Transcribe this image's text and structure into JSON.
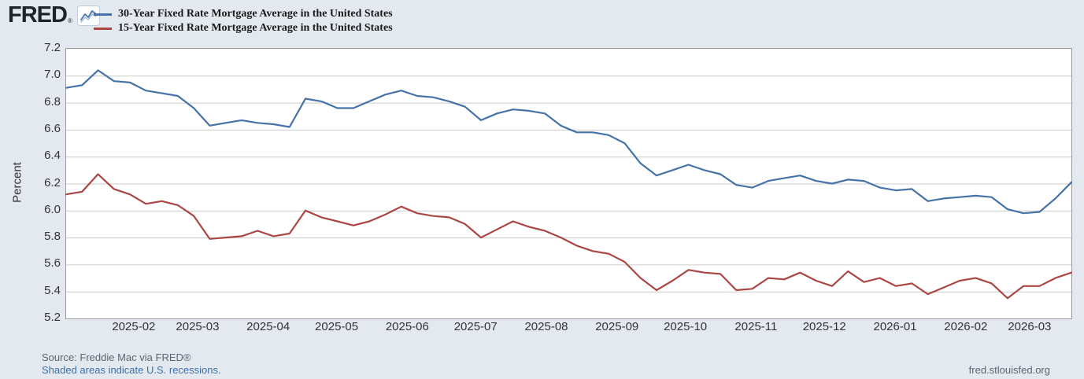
{
  "logo": {
    "text": "FRED",
    "registered": "®",
    "icon": "fred-sparkline-icon"
  },
  "legend": [
    {
      "label": "30-Year Fixed Rate Mortgage Average in the United States",
      "color": "#4572a7"
    },
    {
      "label": "15-Year Fixed Rate Mortgage Average in the United States",
      "color": "#aa4643"
    }
  ],
  "footer": {
    "source": "Source: Freddie Mac via FRED®",
    "recessions_link": "Shaded areas indicate U.S. recessions.",
    "site": "fred.stlouisfed.org"
  },
  "chart_data": {
    "type": "line",
    "ylabel": "Percent",
    "ylim": [
      5.2,
      7.2
    ],
    "yticks": [
      5.2,
      5.4,
      5.6,
      5.8,
      6.0,
      6.2,
      6.4,
      6.6,
      6.8,
      7.0,
      7.2
    ],
    "grid": true,
    "legend_position": "top-left",
    "x_domain": [
      "2025-01-02",
      "2026-03-19"
    ],
    "xticks": [
      {
        "label": "2025-02",
        "date": "2025-02-01"
      },
      {
        "label": "2025-03",
        "date": "2025-03-01"
      },
      {
        "label": "2025-04",
        "date": "2025-04-01"
      },
      {
        "label": "2025-05",
        "date": "2025-05-01"
      },
      {
        "label": "2025-06",
        "date": "2025-06-01"
      },
      {
        "label": "2025-07",
        "date": "2025-07-01"
      },
      {
        "label": "2025-08",
        "date": "2025-08-01"
      },
      {
        "label": "2025-09",
        "date": "2025-09-01"
      },
      {
        "label": "2025-10",
        "date": "2025-10-01"
      },
      {
        "label": "2025-11",
        "date": "2025-11-01"
      },
      {
        "label": "2025-12",
        "date": "2025-12-01"
      },
      {
        "label": "2026-01",
        "date": "2026-01-01"
      },
      {
        "label": "2026-02",
        "date": "2026-02-01"
      },
      {
        "label": "2026-03",
        "date": "2026-03-01"
      }
    ],
    "dates": [
      "2025-01-02",
      "2025-01-09",
      "2025-01-16",
      "2025-01-23",
      "2025-01-30",
      "2025-02-06",
      "2025-02-13",
      "2025-02-20",
      "2025-02-27",
      "2025-03-06",
      "2025-03-13",
      "2025-03-20",
      "2025-03-27",
      "2025-04-03",
      "2025-04-10",
      "2025-04-17",
      "2025-04-24",
      "2025-05-01",
      "2025-05-08",
      "2025-05-15",
      "2025-05-22",
      "2025-05-29",
      "2025-06-05",
      "2025-06-12",
      "2025-06-19",
      "2025-06-26",
      "2025-07-03",
      "2025-07-10",
      "2025-07-17",
      "2025-07-24",
      "2025-07-31",
      "2025-08-07",
      "2025-08-14",
      "2025-08-21",
      "2025-08-28",
      "2025-09-04",
      "2025-09-11",
      "2025-09-18",
      "2025-09-25",
      "2025-10-02",
      "2025-10-09",
      "2025-10-16",
      "2025-10-23",
      "2025-10-30",
      "2025-11-06",
      "2025-11-13",
      "2025-11-20",
      "2025-11-27",
      "2025-12-04",
      "2025-12-11",
      "2025-12-18",
      "2025-12-25",
      "2026-01-01",
      "2026-01-08",
      "2026-01-15",
      "2026-01-22",
      "2026-01-29",
      "2026-02-05",
      "2026-02-12",
      "2026-02-19",
      "2026-02-26",
      "2026-03-05",
      "2026-03-12",
      "2026-03-19"
    ],
    "series": [
      {
        "name": "30-Year Fixed Rate Mortgage Average in the United States",
        "color": "#4572a7",
        "values": [
          6.91,
          6.93,
          7.04,
          6.96,
          6.95,
          6.89,
          6.87,
          6.85,
          6.76,
          6.63,
          6.65,
          6.67,
          6.65,
          6.64,
          6.62,
          6.83,
          6.81,
          6.76,
          6.76,
          6.81,
          6.86,
          6.89,
          6.85,
          6.84,
          6.81,
          6.77,
          6.67,
          6.72,
          6.75,
          6.74,
          6.72,
          6.63,
          6.58,
          6.58,
          6.56,
          6.5,
          6.35,
          6.26,
          6.3,
          6.34,
          6.3,
          6.27,
          6.19,
          6.17,
          6.22,
          6.24,
          6.26,
          6.22,
          6.2,
          6.23,
          6.22,
          6.17,
          6.15,
          6.16,
          6.07,
          6.09,
          6.1,
          6.11,
          6.1,
          6.01,
          5.98,
          5.99,
          6.09,
          6.21
        ]
      },
      {
        "name": "15-Year Fixed Rate Mortgage Average in the United States",
        "color": "#aa4643",
        "values": [
          6.12,
          6.14,
          6.27,
          6.16,
          6.12,
          6.05,
          6.07,
          6.04,
          5.96,
          5.79,
          5.8,
          5.81,
          5.85,
          5.81,
          5.83,
          6.0,
          5.95,
          5.92,
          5.89,
          5.92,
          5.97,
          6.03,
          5.98,
          5.96,
          5.95,
          5.9,
          5.8,
          5.86,
          5.92,
          5.88,
          5.85,
          5.8,
          5.74,
          5.7,
          5.68,
          5.62,
          5.5,
          5.41,
          5.48,
          5.56,
          5.54,
          5.53,
          5.41,
          5.42,
          5.5,
          5.49,
          5.54,
          5.48,
          5.44,
          5.55,
          5.47,
          5.5,
          5.44,
          5.46,
          5.38,
          5.43,
          5.48,
          5.5,
          5.46,
          5.35,
          5.44,
          5.44,
          5.5,
          5.54
        ]
      }
    ]
  }
}
